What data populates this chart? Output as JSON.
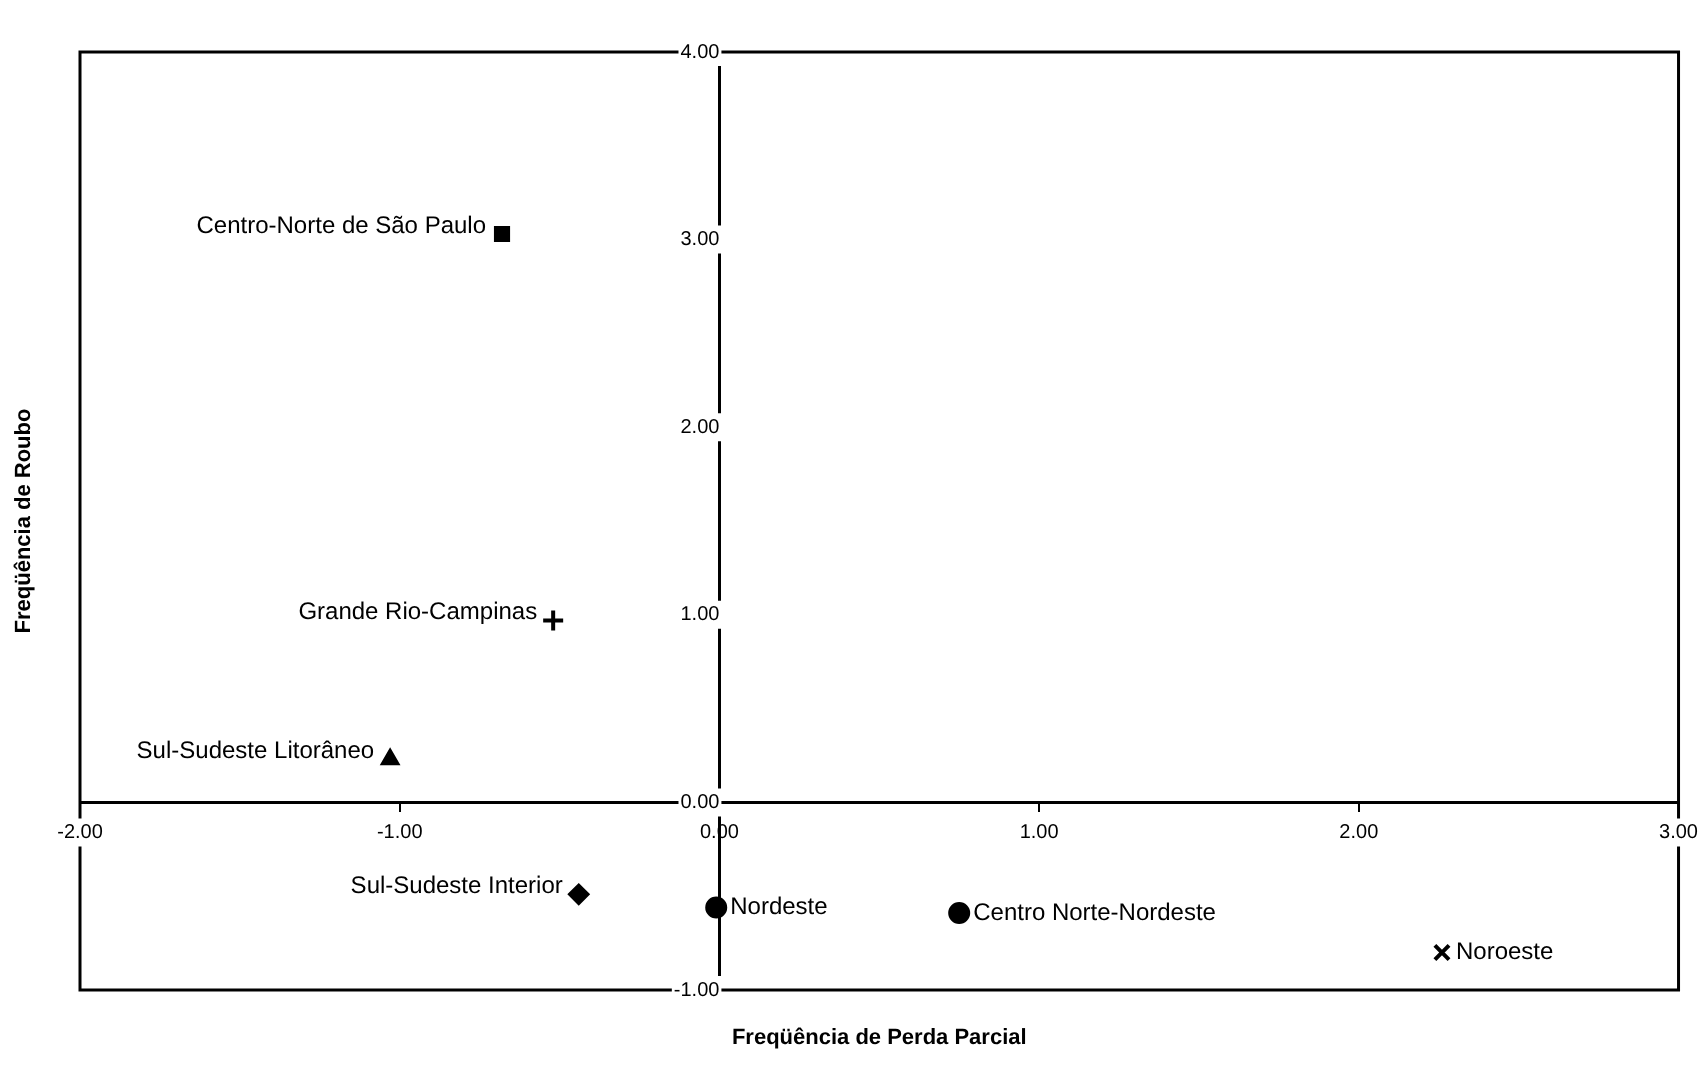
{
  "chart_data": {
    "type": "scatter",
    "xlabel": "Freqüência de Perda Parcial",
    "ylabel": "Freqüência de Roubo",
    "xlim": [
      -2,
      3
    ],
    "ylim": [
      -1,
      4
    ],
    "xticks": [
      {
        "value": -2,
        "label": "-2.00"
      },
      {
        "value": -1,
        "label": "-1.00"
      },
      {
        "value": 0,
        "label": "0.00"
      },
      {
        "value": 1,
        "label": "1.00"
      },
      {
        "value": 2,
        "label": "2.00"
      },
      {
        "value": 3,
        "label": "3.00"
      }
    ],
    "yticks": [
      {
        "value": -1,
        "label": "-1.00"
      },
      {
        "value": 0,
        "label": "0.00"
      },
      {
        "value": 1,
        "label": "1.00"
      },
      {
        "value": 2,
        "label": "2.00"
      },
      {
        "value": 3,
        "label": "3.00"
      },
      {
        "value": 4,
        "label": "4.00"
      }
    ],
    "grid": false,
    "legend": false,
    "series": [
      {
        "name": "Centro-Norte de São Paulo",
        "color": "#000000",
        "marker": "square",
        "x": [
          -0.68
        ],
        "values": [
          3.03
        ]
      },
      {
        "name": "Grande Rio-Campinas",
        "color": "#000000",
        "marker": "cross",
        "x": [
          -0.52
        ],
        "values": [
          0.97
        ]
      },
      {
        "name": "Sul-Sudeste Litorâneo",
        "color": "#000000",
        "marker": "triangle",
        "x": [
          -1.03
        ],
        "values": [
          0.23
        ]
      },
      {
        "name": "Sul-Sudeste Interior",
        "color": "#000000",
        "marker": "diamond",
        "x": [
          -0.44
        ],
        "values": [
          -0.49
        ]
      },
      {
        "name": "Nordeste",
        "color": "#000000",
        "marker": "circle",
        "x": [
          -0.01
        ],
        "values": [
          -0.56
        ]
      },
      {
        "name": "Centro Norte-Nordeste",
        "color": "#000000",
        "marker": "circle",
        "x": [
          0.75
        ],
        "values": [
          -0.59
        ]
      },
      {
        "name": "Noroeste",
        "color": "#000000",
        "marker": "x",
        "x": [
          2.26
        ],
        "values": [
          -0.8
        ]
      }
    ]
  }
}
